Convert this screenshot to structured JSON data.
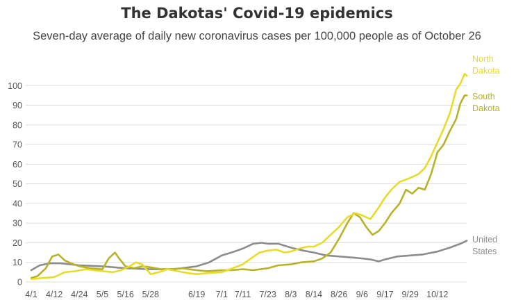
{
  "chart_data": {
    "type": "line",
    "title": "The Dakotas' Covid-19 epidemics",
    "subtitle": "Seven-day average of daily new coronavirus cases per 100,000 people as of October 26",
    "xlabel": "",
    "ylabel": "",
    "ylim": [
      0,
      110
    ],
    "y_ticks": [
      0,
      10,
      20,
      30,
      40,
      50,
      60,
      70,
      80,
      90,
      100
    ],
    "x_ticks": [
      "4/1",
      "4/12",
      "4/24",
      "5/5",
      "5/16",
      "5/28",
      "6/19",
      "7/1",
      "7/11",
      "7/23",
      "8/3",
      "8/14",
      "8/26",
      "9/6",
      "9/17",
      "9/29",
      "10/12"
    ],
    "grid": true,
    "legend": "inline-right",
    "series": [
      {
        "name": "North Dakota",
        "label_lines": [
          "North",
          "Dakota"
        ],
        "color": "#e6dc2a",
        "points": [
          [
            "2020-04-01",
            1.5
          ],
          [
            "2020-04-06",
            2
          ],
          [
            "2020-04-12",
            2.5
          ],
          [
            "2020-04-17",
            5
          ],
          [
            "2020-04-22",
            5.5
          ],
          [
            "2020-04-27",
            6.5
          ],
          [
            "2020-05-01",
            6
          ],
          [
            "2020-05-05",
            5.5
          ],
          [
            "2020-05-10",
            5
          ],
          [
            "2020-05-14",
            6
          ],
          [
            "2020-05-18",
            8
          ],
          [
            "2020-05-21",
            10
          ],
          [
            "2020-05-24",
            9
          ],
          [
            "2020-05-28",
            4
          ],
          [
            "2020-06-01",
            5
          ],
          [
            "2020-06-05",
            6.5
          ],
          [
            "2020-06-10",
            5.5
          ],
          [
            "2020-06-15",
            4.5
          ],
          [
            "2020-06-19",
            4
          ],
          [
            "2020-06-24",
            4.5
          ],
          [
            "2020-07-01",
            5
          ],
          [
            "2020-07-05",
            6.5
          ],
          [
            "2020-07-11",
            9
          ],
          [
            "2020-07-15",
            12
          ],
          [
            "2020-07-19",
            15
          ],
          [
            "2020-07-23",
            16
          ],
          [
            "2020-07-27",
            16.5
          ],
          [
            "2020-07-31",
            15
          ],
          [
            "2020-08-03",
            15.5
          ],
          [
            "2020-08-07",
            17
          ],
          [
            "2020-08-11",
            18
          ],
          [
            "2020-08-14",
            18
          ],
          [
            "2020-08-18",
            20
          ],
          [
            "2020-08-22",
            24
          ],
          [
            "2020-08-26",
            28
          ],
          [
            "2020-08-30",
            33
          ],
          [
            "2020-09-03",
            35
          ],
          [
            "2020-09-06",
            34
          ],
          [
            "2020-09-10",
            32
          ],
          [
            "2020-09-14",
            38
          ],
          [
            "2020-09-17",
            43
          ],
          [
            "2020-09-20",
            47
          ],
          [
            "2020-09-24",
            51
          ],
          [
            "2020-09-29",
            53
          ],
          [
            "2020-10-03",
            55
          ],
          [
            "2020-10-06",
            58
          ],
          [
            "2020-10-09",
            64
          ],
          [
            "2020-10-12",
            71
          ],
          [
            "2020-10-15",
            78
          ],
          [
            "2020-10-18",
            86
          ],
          [
            "2020-10-21",
            98
          ],
          [
            "2020-10-23",
            101
          ],
          [
            "2020-10-25",
            106
          ],
          [
            "2020-10-26",
            105
          ]
        ]
      },
      {
        "name": "South Dakota",
        "label_lines": [
          "South",
          "Dakota"
        ],
        "color": "#b7b22a",
        "points": [
          [
            "2020-04-01",
            2
          ],
          [
            "2020-04-04",
            3
          ],
          [
            "2020-04-08",
            7
          ],
          [
            "2020-04-11",
            13
          ],
          [
            "2020-04-14",
            14
          ],
          [
            "2020-04-17",
            11
          ],
          [
            "2020-04-20",
            9.5
          ],
          [
            "2020-04-24",
            8
          ],
          [
            "2020-04-29",
            7
          ],
          [
            "2020-05-05",
            6.5
          ],
          [
            "2020-05-08",
            12
          ],
          [
            "2020-05-11",
            15
          ],
          [
            "2020-05-13",
            12
          ],
          [
            "2020-05-16",
            8
          ],
          [
            "2020-05-20",
            7
          ],
          [
            "2020-05-24",
            8
          ],
          [
            "2020-05-28",
            7.5
          ],
          [
            "2020-06-02",
            6.5
          ],
          [
            "2020-06-07",
            6.5
          ],
          [
            "2020-06-12",
            7
          ],
          [
            "2020-06-19",
            6
          ],
          [
            "2020-06-24",
            5.5
          ],
          [
            "2020-07-01",
            6
          ],
          [
            "2020-07-06",
            6
          ],
          [
            "2020-07-11",
            6.5
          ],
          [
            "2020-07-16",
            6
          ],
          [
            "2020-07-23",
            7
          ],
          [
            "2020-07-28",
            8.5
          ],
          [
            "2020-08-03",
            9
          ],
          [
            "2020-08-08",
            10
          ],
          [
            "2020-08-14",
            10.5
          ],
          [
            "2020-08-18",
            12
          ],
          [
            "2020-08-22",
            15
          ],
          [
            "2020-08-26",
            22
          ],
          [
            "2020-08-30",
            30
          ],
          [
            "2020-09-02",
            35
          ],
          [
            "2020-09-05",
            33
          ],
          [
            "2020-09-08",
            28
          ],
          [
            "2020-09-11",
            24
          ],
          [
            "2020-09-14",
            26
          ],
          [
            "2020-09-17",
            30
          ],
          [
            "2020-09-20",
            35
          ],
          [
            "2020-09-24",
            40
          ],
          [
            "2020-09-27",
            47
          ],
          [
            "2020-09-30",
            45
          ],
          [
            "2020-10-03",
            48
          ],
          [
            "2020-10-06",
            47
          ],
          [
            "2020-10-09",
            55
          ],
          [
            "2020-10-12",
            66
          ],
          [
            "2020-10-15",
            70
          ],
          [
            "2020-10-18",
            77
          ],
          [
            "2020-10-21",
            83
          ],
          [
            "2020-10-23",
            91
          ],
          [
            "2020-10-25",
            95
          ],
          [
            "2020-10-26",
            95
          ]
        ]
      },
      {
        "name": "United States",
        "label_lines": [
          "United",
          "States"
        ],
        "color": "#8c8c8c",
        "points": [
          [
            "2020-04-01",
            6
          ],
          [
            "2020-04-05",
            8.5
          ],
          [
            "2020-04-10",
            9.5
          ],
          [
            "2020-04-15",
            9.5
          ],
          [
            "2020-04-24",
            8.5
          ],
          [
            "2020-05-05",
            8
          ],
          [
            "2020-05-16",
            7
          ],
          [
            "2020-05-28",
            6.5
          ],
          [
            "2020-06-08",
            6.5
          ],
          [
            "2020-06-19",
            8
          ],
          [
            "2020-06-25",
            10
          ],
          [
            "2020-07-01",
            13.5
          ],
          [
            "2020-07-07",
            15.5
          ],
          [
            "2020-07-11",
            17
          ],
          [
            "2020-07-16",
            19.5
          ],
          [
            "2020-07-20",
            20
          ],
          [
            "2020-07-23",
            19.5
          ],
          [
            "2020-07-28",
            19.5
          ],
          [
            "2020-08-03",
            17.5
          ],
          [
            "2020-08-09",
            16
          ],
          [
            "2020-08-14",
            15
          ],
          [
            "2020-08-20",
            13.5
          ],
          [
            "2020-08-26",
            13
          ],
          [
            "2020-09-01",
            12.5
          ],
          [
            "2020-09-06",
            12
          ],
          [
            "2020-09-10",
            11.5
          ],
          [
            "2020-09-14",
            10.5
          ],
          [
            "2020-09-17",
            11.5
          ],
          [
            "2020-09-23",
            13
          ],
          [
            "2020-09-29",
            13.5
          ],
          [
            "2020-10-05",
            14
          ],
          [
            "2020-10-12",
            15.5
          ],
          [
            "2020-10-18",
            17.5
          ],
          [
            "2020-10-23",
            19.5
          ],
          [
            "2020-10-26",
            21
          ]
        ]
      }
    ]
  }
}
